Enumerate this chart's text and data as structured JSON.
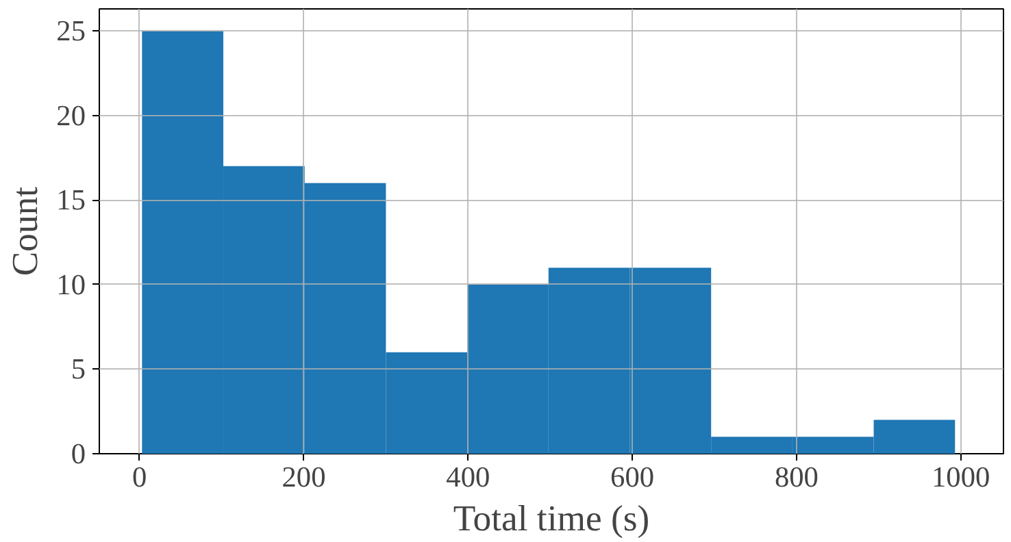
{
  "chart_data": {
    "type": "histogram",
    "xlabel": "Total time (s)",
    "ylabel": "Count",
    "bins": [
      3,
      102,
      201,
      300,
      399,
      498,
      597,
      696,
      795,
      894,
      993
    ],
    "values": [
      25,
      17,
      16,
      6,
      10,
      11,
      11,
      1,
      1,
      2
    ],
    "color": "#1f77b4",
    "xlim": [
      -49,
      1052
    ],
    "ylim": [
      0,
      26.3
    ],
    "xticks": [
      0,
      200,
      400,
      600,
      800,
      1000
    ],
    "yticks": [
      0,
      5,
      10,
      15,
      20,
      25
    ],
    "grid": true
  }
}
